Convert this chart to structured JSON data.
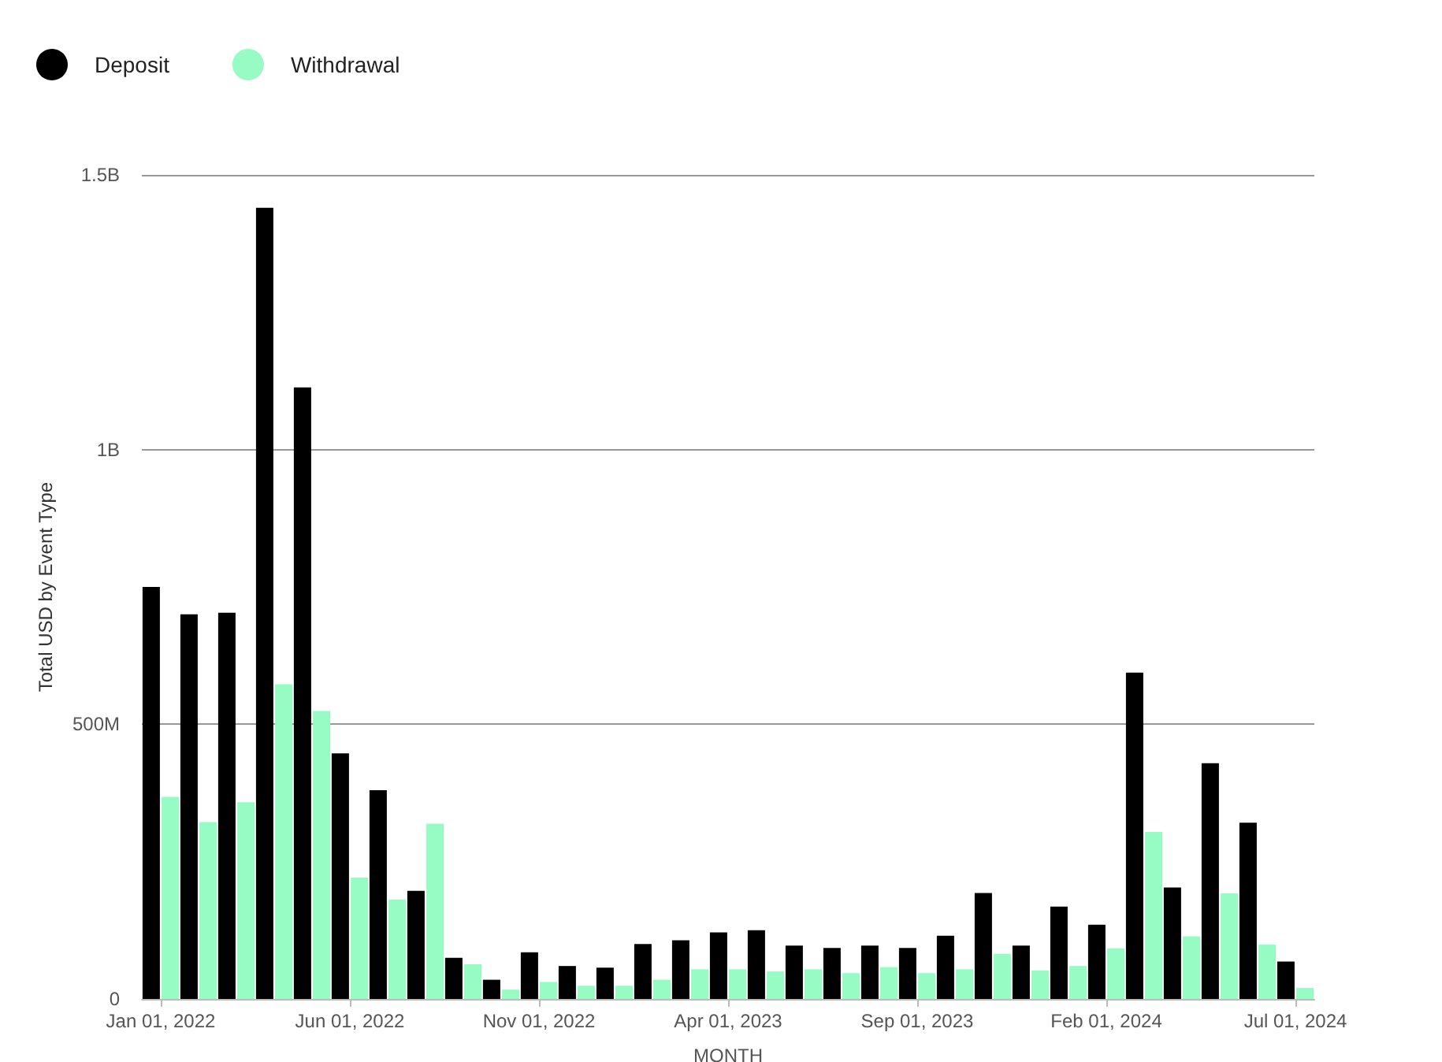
{
  "chart_data": {
    "type": "bar",
    "xlabel": "MONTH",
    "ylabel": "Total USD by Event Type",
    "categories": [
      "Jan 01, 2022",
      null,
      null,
      null,
      null,
      "Jun 01, 2022",
      null,
      null,
      null,
      null,
      "Nov 01, 2022",
      null,
      null,
      null,
      null,
      "Apr 01, 2023",
      null,
      null,
      null,
      null,
      "Sep 01, 2023",
      null,
      null,
      null,
      null,
      "Feb 01, 2024",
      null,
      null,
      null,
      null,
      "Jul 01, 2024"
    ],
    "series": [
      {
        "name": "Deposit",
        "color": "#000000",
        "values": [
          750000000,
          700000000,
          703000000,
          1440000000,
          1113000000,
          447000000,
          380000000,
          197000000,
          75000000,
          35000000,
          85000000,
          60000000,
          57000000,
          100000000,
          107000000,
          121000000,
          125000000,
          97000000,
          93000000,
          97000000,
          93000000,
          115000000,
          193000000,
          97000000,
          168000000,
          135000000,
          594000000,
          203000000,
          429000000,
          321000000,
          68000000
        ]
      },
      {
        "name": "Withdrawal",
        "color": "#96fcc4",
        "values": [
          368000000,
          322000000,
          358000000,
          573000000,
          524000000,
          221000000,
          181000000,
          319000000,
          63000000,
          17000000,
          31000000,
          24000000,
          24000000,
          35000000,
          54000000,
          54000000,
          50000000,
          54000000,
          47000000,
          58000000,
          47000000,
          54000000,
          82000000,
          52000000,
          60000000,
          92000000,
          304000000,
          114000000,
          192000000,
          99000000,
          20000000
        ]
      }
    ],
    "ylim": [
      0,
      1500000000
    ],
    "yticks": [
      {
        "value": 0,
        "label": "0"
      },
      {
        "value": 500000000,
        "label": "500M"
      },
      {
        "value": 1000000000,
        "label": "1B"
      },
      {
        "value": 1500000000,
        "label": "1.5B"
      }
    ],
    "grid": "y",
    "legend": "top left"
  }
}
